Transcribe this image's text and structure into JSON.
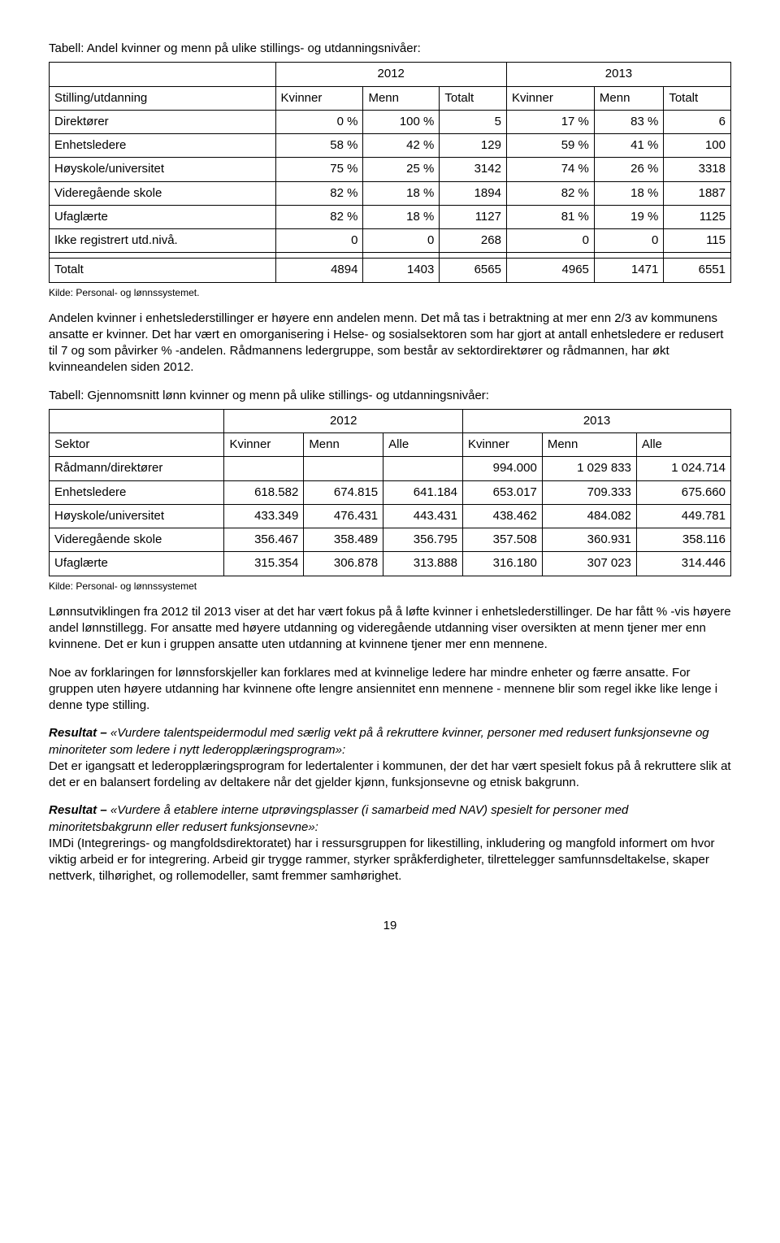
{
  "table1": {
    "title": "Tabell: Andel kvinner og menn på ulike stillings- og utdanningsnivåer:",
    "year1": "2012",
    "year2": "2013",
    "col_group": "Stilling/utdanning",
    "cols": [
      "Kvinner",
      "Menn",
      "Totalt",
      "Kvinner",
      "Menn",
      "Totalt"
    ],
    "rows": [
      {
        "label": "Direktører",
        "c": [
          "0 %",
          "100 %",
          "5",
          "17 %",
          "83 %",
          "6"
        ]
      },
      {
        "label": "Enhetsledere",
        "c": [
          "58 %",
          "42 %",
          "129",
          "59 %",
          "41 %",
          "100"
        ]
      },
      {
        "label": "Høyskole/universitet",
        "c": [
          "75 %",
          "25 %",
          "3142",
          "74 %",
          "26 %",
          "3318"
        ]
      },
      {
        "label": "Videregående skole",
        "c": [
          "82 %",
          "18 %",
          "1894",
          "82 %",
          "18 %",
          "1887"
        ]
      },
      {
        "label": "Ufaglærte",
        "c": [
          "82 %",
          "18 %",
          "1127",
          "81 %",
          "19 %",
          "1125"
        ]
      },
      {
        "label": "Ikke registrert utd.nivå.",
        "c": [
          "0",
          "0",
          "268",
          "0",
          "0",
          "115"
        ]
      }
    ],
    "total": {
      "label": "Totalt",
      "c": [
        "4894",
        "1403",
        "6565",
        "4965",
        "1471",
        "6551"
      ]
    },
    "source": "Kilde: Personal- og lønnssystemet."
  },
  "para1": "Andelen kvinner i enhetslederstillinger er høyere enn andelen menn. Det må tas i betraktning at mer enn 2/3 av kommunens ansatte er kvinner. Det har vært en omorganisering i Helse- og sosialsektoren som har gjort at antall enhetsledere er redusert til 7 og som påvirker % -andelen. Rådmannens ledergruppe, som består av sektordirektører og rådmannen, har økt kvinneandelen siden 2012.",
  "table2": {
    "title": "Tabell: Gjennomsnitt lønn kvinner og menn på ulike stillings- og utdanningsnivåer:",
    "year1": "2012",
    "year2": "2013",
    "col_group": "Sektor",
    "cols": [
      "Kvinner",
      "Menn",
      "Alle",
      "Kvinner",
      "Menn",
      "Alle"
    ],
    "rows": [
      {
        "label": "Rådmann/direktører",
        "c": [
          "",
          "",
          "",
          "994.000",
          "1 029 833",
          "1 024.714"
        ]
      },
      {
        "label": "Enhetsledere",
        "c": [
          "618.582",
          "674.815",
          "641.184",
          "653.017",
          "709.333",
          "675.660"
        ]
      },
      {
        "label": "Høyskole/universitet",
        "c": [
          "433.349",
          "476.431",
          "443.431",
          "438.462",
          "484.082",
          "449.781"
        ]
      },
      {
        "label": "Videregående skole",
        "c": [
          "356.467",
          "358.489",
          "356.795",
          "357.508",
          "360.931",
          "358.116"
        ]
      },
      {
        "label": "Ufaglærte",
        "c": [
          "315.354",
          "306.878",
          "313.888",
          "316.180",
          "307 023",
          "314.446"
        ]
      }
    ],
    "source": "Kilde: Personal- og lønnssystemet"
  },
  "para2": "Lønnsutviklingen fra 2012 til 2013 viser at det har vært fokus på å løfte kvinner i enhetslederstillinger. De har fått % -vis høyere andel lønnstillegg. For ansatte med høyere utdanning og videregående utdanning viser oversikten at menn tjener mer enn kvinnene. Det er kun i gruppen ansatte uten utdanning at kvinnene tjener mer enn mennene.",
  "para3": "Noe av forklaringen for lønnsforskjeller kan forklares med at kvinnelige ledere har mindre enheter og færre ansatte. For gruppen uten høyere utdanning har kvinnene ofte lengre ansiennitet enn mennene - mennene blir som regel ikke like lenge i denne type stilling.",
  "result1": {
    "lead": "Resultat – ",
    "quote": "«Vurdere talentspeidermodul med særlig vekt på å rekruttere kvinner, personer med redusert funksjonsevne og minoriteter som ledere i nytt lederopplæringsprogram»:",
    "body": "Det er igangsatt et lederopplæringsprogram for ledertalenter i kommunen, der det har vært spesielt fokus på å rekruttere slik at det er en balansert fordeling av deltakere når det gjelder kjønn, funksjonsevne og etnisk bakgrunn."
  },
  "result2": {
    "lead": "Resultat – ",
    "quote": "«Vurdere å etablere interne utprøvingsplasser (i samarbeid med NAV) spesielt for personer med minoritetsbakgrunn eller redusert funksjonsevne»:",
    "body": "IMDi (Integrerings- og mangfoldsdirektoratet) har i ressursgruppen for likestilling, inkludering og mangfold informert om hvor viktig arbeid er for integrering. Arbeid gir trygge rammer, styrker språkferdigheter, tilrettelegger samfunnsdeltakelse, skaper nettverk, tilhørighet, og rollemodeller, samt fremmer samhørighet."
  },
  "page_number": "19"
}
